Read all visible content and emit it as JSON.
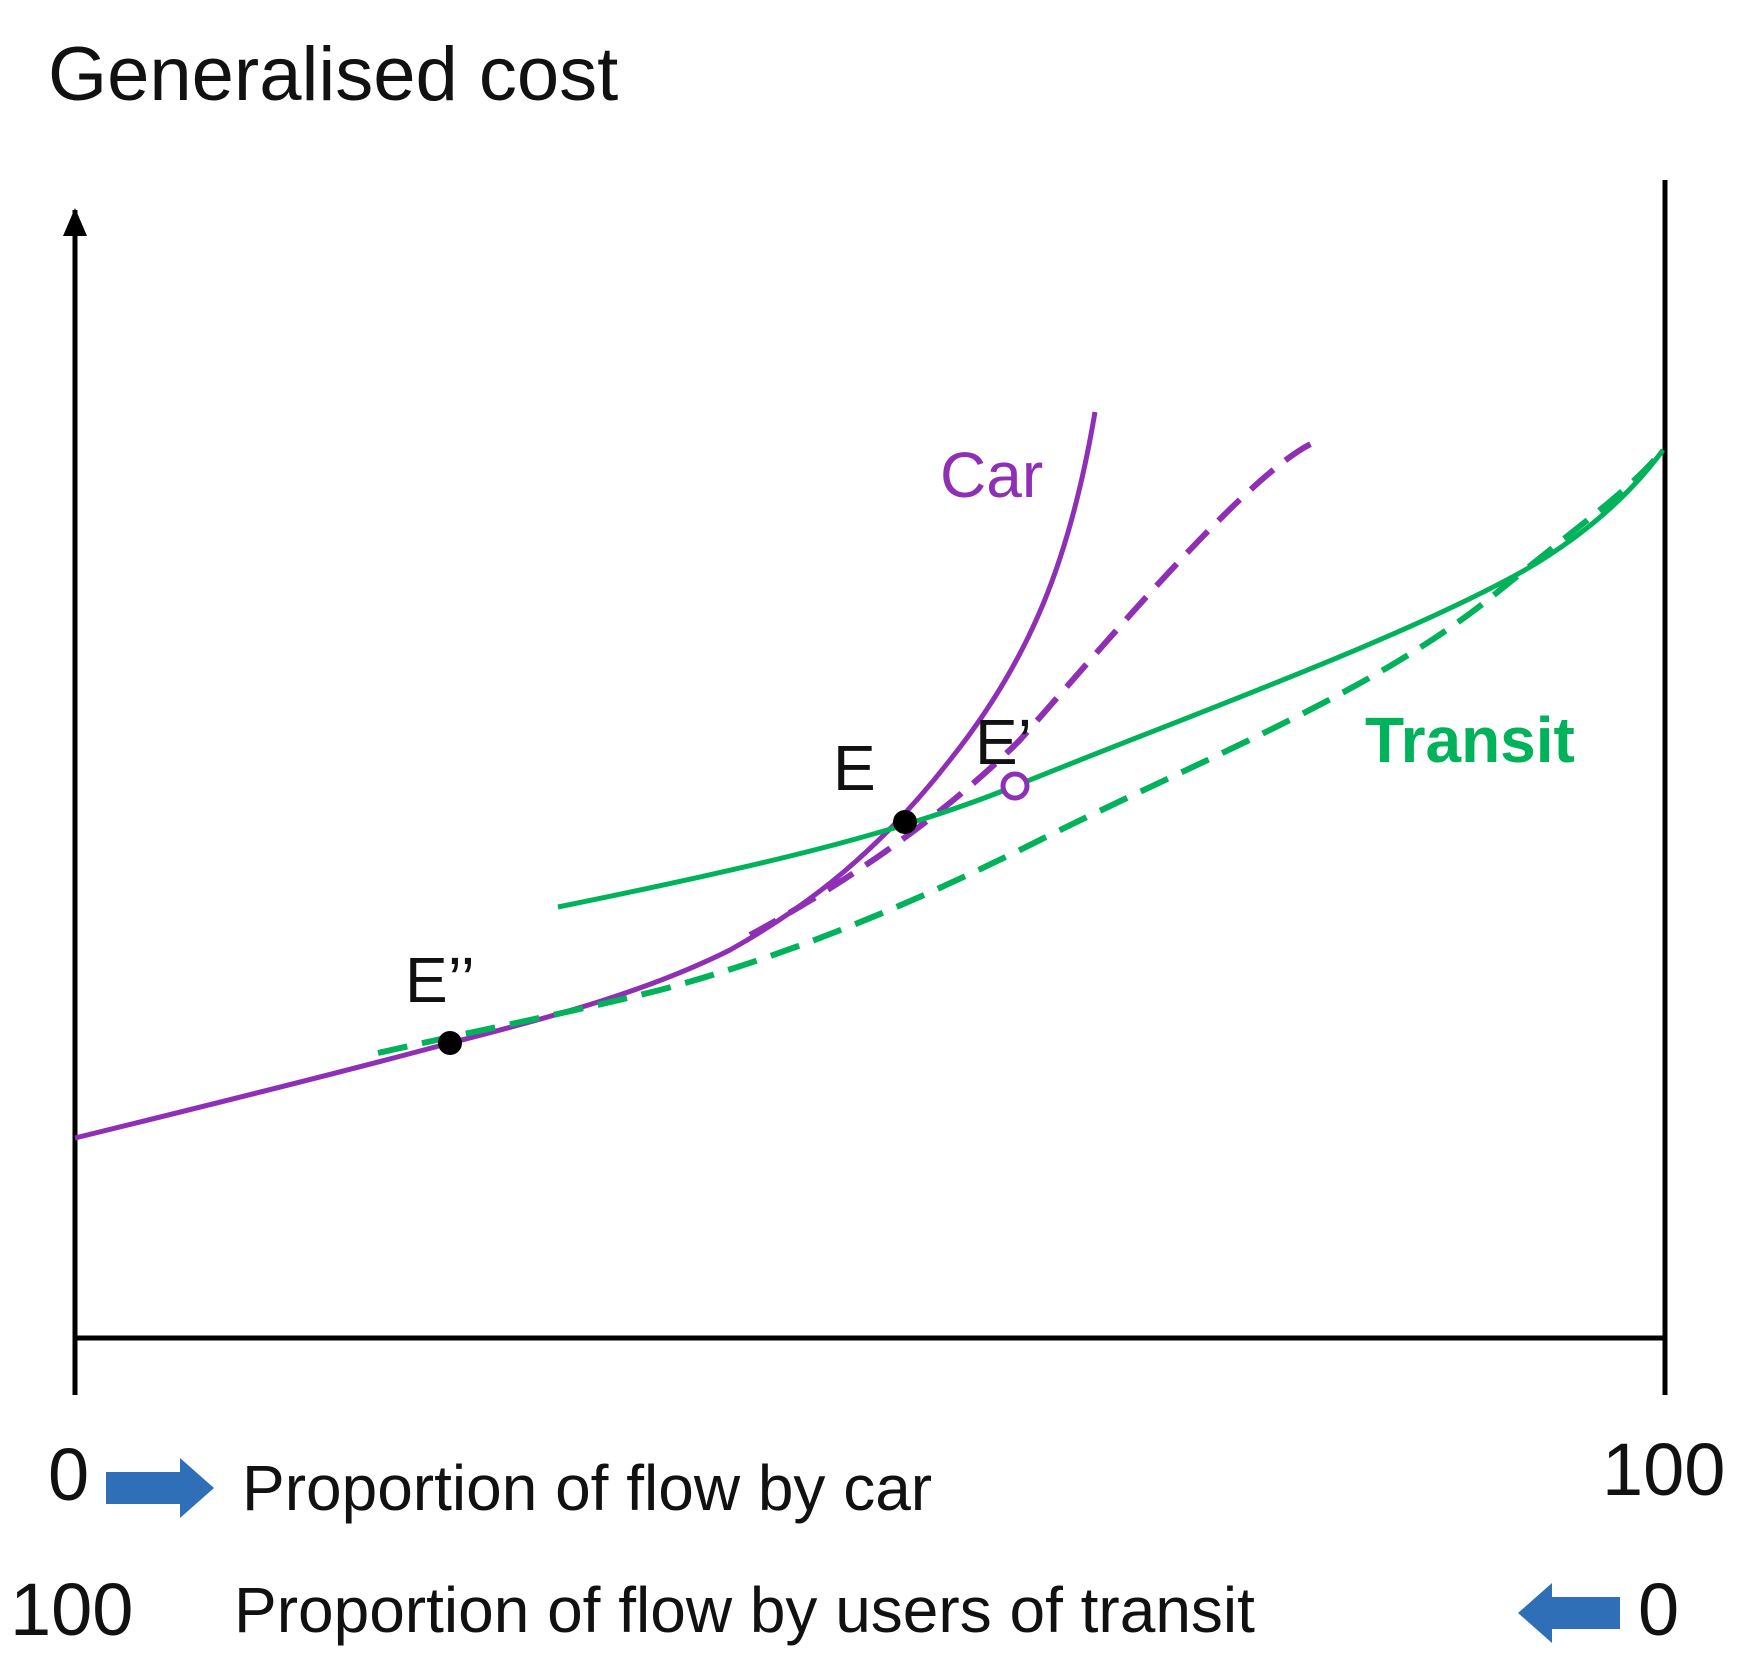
{
  "diagram": {
    "title": "Generalised cost",
    "x_axis": {
      "top_row": {
        "start": "0",
        "end": "100",
        "label": "Proportion of flow by car"
      },
      "bottom_row": {
        "start": "100",
        "end": "0",
        "label": "Proportion of flow by users of transit"
      }
    },
    "curves": [
      {
        "id": "car",
        "label": "Car",
        "style": "solid",
        "color": "#8e2fb6"
      },
      {
        "id": "car-shifted",
        "label": "",
        "style": "dashed",
        "color": "#8e2fb6"
      },
      {
        "id": "transit",
        "label": "Transit",
        "style": "solid",
        "color": "#00b35a"
      },
      {
        "id": "transit-shifted",
        "label": "",
        "style": "dashed",
        "color": "#00b35a"
      }
    ],
    "points": [
      {
        "id": "E",
        "label": "E"
      },
      {
        "id": "E-prime",
        "label": "E’"
      },
      {
        "id": "E-double-prime",
        "label": "E’’"
      }
    ],
    "arrow_color": "#2f6fb8"
  }
}
